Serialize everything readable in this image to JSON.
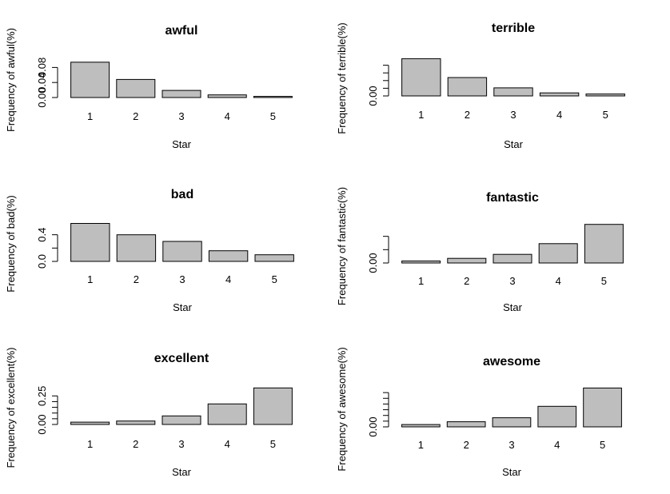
{
  "chart_data": [
    {
      "type": "bar",
      "title": "awful",
      "xlabel": "Star",
      "ylabel": "Frequency of awful(%)",
      "categories": [
        "1",
        "2",
        "3",
        "4",
        "5"
      ],
      "values": [
        0.094,
        0.048,
        0.019,
        0.007,
        0.003
      ],
      "ylim": [
        0,
        0.1
      ],
      "yticks": [
        0.0,
        0.04,
        0.08
      ],
      "ytick_labels": [
        "0.00",
        "0.04",
        "0.08"
      ]
    },
    {
      "type": "bar",
      "title": "terrible",
      "xlabel": "Star",
      "ylabel": "Frequency of terrible(%)",
      "categories": [
        "1",
        "2",
        "3",
        "4",
        "5"
      ],
      "values": [
        0.097,
        0.048,
        0.021,
        0.008,
        0.005
      ],
      "ylim": [
        0,
        0.1
      ],
      "yticks": [
        0.0,
        0.02,
        0.04,
        0.06,
        0.08
      ],
      "ytick_labels": [
        "0.00",
        "",
        "",
        "",
        ""
      ]
    },
    {
      "type": "bar",
      "title": "bad",
      "xlabel": "Star",
      "ylabel": "Frequency of bad(%)",
      "categories": [
        "1",
        "2",
        "3",
        "4",
        "5"
      ],
      "values": [
        0.57,
        0.4,
        0.3,
        0.16,
        0.1
      ],
      "ylim": [
        0,
        0.6
      ],
      "yticks": [
        0.0,
        0.2,
        0.4
      ],
      "ytick_labels": [
        "0.0",
        "",
        "0.4"
      ]
    },
    {
      "type": "bar",
      "title": "fantastic",
      "xlabel": "Star",
      "ylabel": "Frequency of fantastic(%)",
      "categories": [
        "1",
        "2",
        "3",
        "4",
        "5"
      ],
      "values": [
        0.003,
        0.007,
        0.013,
        0.029,
        0.058
      ],
      "ylim": [
        0,
        0.06
      ],
      "yticks": [
        0.0,
        0.02,
        0.04
      ],
      "ytick_labels": [
        "0.00",
        "",
        ""
      ]
    },
    {
      "type": "bar",
      "title": "excellent",
      "xlabel": "Star",
      "ylabel": "Frequency of excellent(%)",
      "categories": [
        "1",
        "2",
        "3",
        "4",
        "5"
      ],
      "values": [
        0.02,
        0.03,
        0.075,
        0.18,
        0.32
      ],
      "ylim": [
        0,
        0.35
      ],
      "yticks": [
        0.0,
        0.05,
        0.1,
        0.15,
        0.2,
        0.25
      ],
      "ytick_labels": [
        "0.00",
        "",
        "",
        "",
        "",
        "0.25"
      ]
    },
    {
      "type": "bar",
      "title": "awesome",
      "xlabel": "Star",
      "ylabel": "Frequency of awesome(%)",
      "categories": [
        "1",
        "2",
        "3",
        "4",
        "5"
      ],
      "values": [
        0.004,
        0.009,
        0.016,
        0.036,
        0.068
      ],
      "ylim": [
        0,
        0.07
      ],
      "yticks": [
        0.0,
        0.01,
        0.02,
        0.03,
        0.04,
        0.05,
        0.06
      ],
      "ytick_labels": [
        "0.00",
        "",
        "",
        "",
        "",
        "",
        ""
      ]
    }
  ]
}
